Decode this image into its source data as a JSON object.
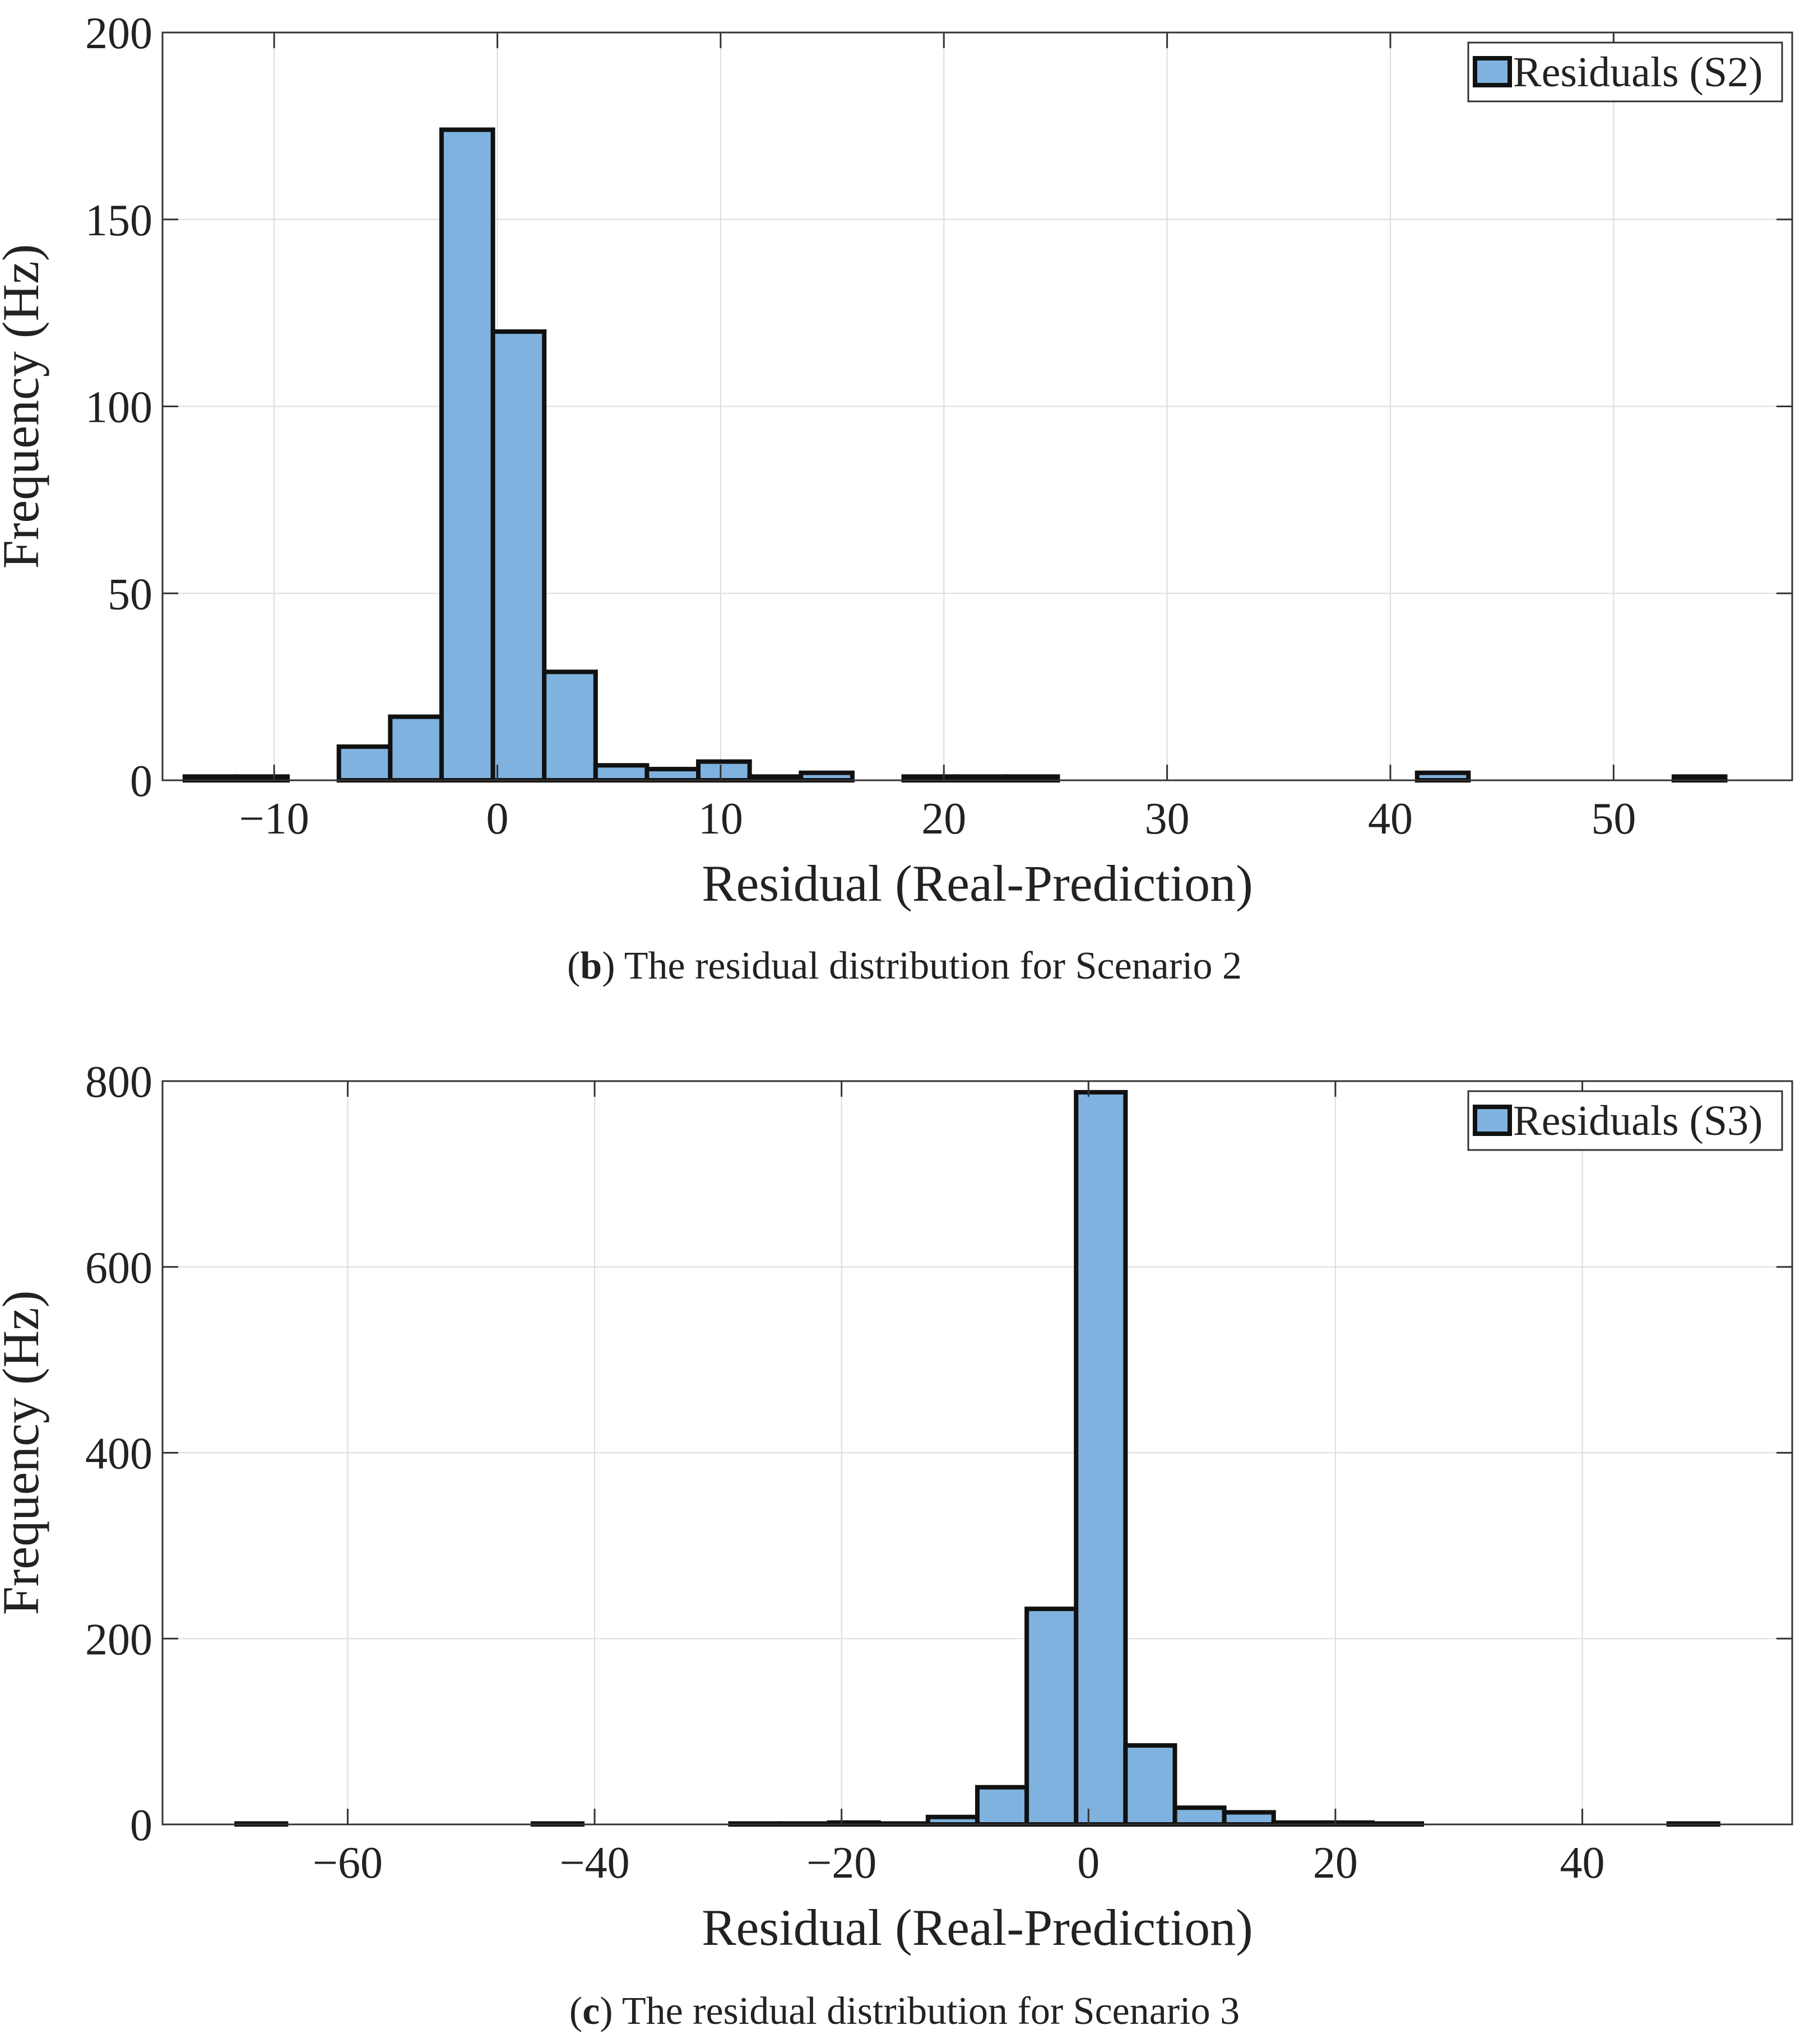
{
  "colors": {
    "bar_fill": "#7FB2DE",
    "bar_edge": "#111111",
    "grid": "#dddddd",
    "axis": "#333333",
    "text": "#222222"
  },
  "chart_data": [
    {
      "type": "bar",
      "title": "",
      "xlabel": "Residual (Real-Prediction)",
      "ylabel": "Frequency (Hz)",
      "legend": {
        "label": "Residuals (S2)",
        "position": "top-right"
      },
      "xlim": [
        -15,
        58
      ],
      "ylim": [
        0,
        200
      ],
      "xticks": [
        -10,
        0,
        10,
        20,
        30,
        40,
        50
      ],
      "xtick_labels": [
        "−10",
        "0",
        "10",
        "20",
        "30",
        "40",
        "50"
      ],
      "yticks": [
        0,
        50,
        100,
        150,
        200
      ],
      "ytick_labels": [
        "0",
        "50",
        "100",
        "150",
        "200"
      ],
      "grid": true,
      "bin_edges": [
        -14.0,
        -11.7,
        -9.4,
        -7.1,
        -4.8,
        -2.5,
        -0.2,
        2.1,
        4.4,
        6.7,
        9.0,
        11.3,
        13.6,
        15.9,
        18.2,
        20.5,
        22.8,
        25.1,
        27.4,
        29.7,
        32.0,
        34.3,
        36.6,
        38.9,
        41.2,
        43.5,
        45.8,
        48.1,
        50.4,
        52.7,
        55.0
      ],
      "counts": [
        1,
        1,
        0,
        9,
        17,
        174,
        120,
        29,
        4,
        3,
        5,
        1,
        2,
        0,
        1,
        1,
        1,
        0,
        0,
        0,
        0,
        0,
        0,
        0,
        2,
        0,
        0,
        0,
        0,
        1
      ],
      "caption_label": "b",
      "caption_text": "The residual distribution for Scenario 2"
    },
    {
      "type": "bar",
      "title": "",
      "xlabel": "Residual (Real-Prediction)",
      "ylabel": "Frequency (Hz)",
      "legend": {
        "label": "Residuals (S3)",
        "position": "top-right"
      },
      "xlim": [
        -75,
        57
      ],
      "ylim": [
        0,
        800
      ],
      "xticks": [
        -60,
        -40,
        -20,
        0,
        20,
        40
      ],
      "xtick_labels": [
        "−60",
        "−40",
        "−20",
        "0",
        "20",
        "40"
      ],
      "yticks": [
        0,
        200,
        400,
        600,
        800
      ],
      "ytick_labels": [
        "0",
        "200",
        "400",
        "600",
        "800"
      ],
      "grid": true,
      "bin_edges": [
        -69.0,
        -65.0,
        -61.0,
        -57.0,
        -53.0,
        -49.0,
        -45.0,
        -41.0,
        -37.0,
        -33.0,
        -29.0,
        -25.0,
        -21.0,
        -17.0,
        -13.0,
        -9.0,
        -5.0,
        -1.0,
        3.0,
        7.0,
        11.0,
        15.0,
        19.0,
        23.0,
        27.0,
        31.0,
        35.0,
        39.0,
        43.0,
        47.0,
        51.0
      ],
      "counts": [
        1,
        0,
        0,
        0,
        0,
        0,
        1,
        0,
        0,
        0,
        1,
        1,
        2,
        1,
        8,
        40,
        232,
        788,
        85,
        18,
        13,
        2,
        2,
        1,
        0,
        0,
        0,
        0,
        0,
        1
      ],
      "caption_label": "c",
      "caption_text": "The residual distribution for Scenario 3"
    }
  ]
}
